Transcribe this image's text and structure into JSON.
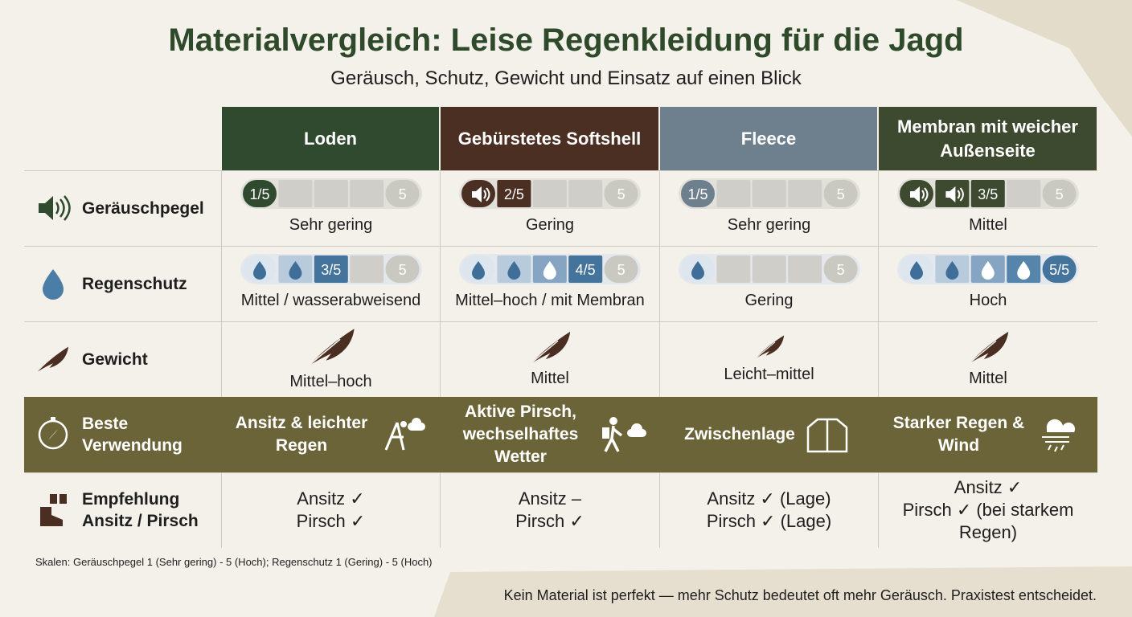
{
  "header": {
    "title": "Materialvergleich: Leise Regenkleidung für die Jagd",
    "subtitle": "Geräusch, Schutz, Gewicht und Einsatz auf einen Blick"
  },
  "table": {
    "columns": [
      {
        "name": "Loden",
        "color": "#2f4a2e"
      },
      {
        "name": "Gebürstetes Softshell",
        "color": "#4b2f23"
      },
      {
        "name": "Fleece",
        "color": "#6e808d"
      },
      {
        "name": "Membran mit weicher Außenseite",
        "color": "#3e4a30"
      }
    ],
    "rows": [
      {
        "label": "Geräuschpegel",
        "kind": "noise",
        "cells": [
          {
            "level": 1,
            "max": 5,
            "label": "1/5",
            "text": "Sehr gering"
          },
          {
            "level": 2,
            "max": 5,
            "label": "2/5",
            "text": "Gering"
          },
          {
            "level": 1,
            "max": 5,
            "label": "1/5",
            "text": "Sehr gering"
          },
          {
            "level": 3,
            "max": 5,
            "label": "3/5",
            "text": "Mittel"
          }
        ]
      },
      {
        "label": "Regenschutz",
        "kind": "rain",
        "cells": [
          {
            "level": 3,
            "max": 5,
            "label": "3/5",
            "text": "Mittel / wasserabweisend"
          },
          {
            "level": 4,
            "max": 5,
            "label": "4/5",
            "text": "Mittel–hoch / mit Membran"
          },
          {
            "level": 1,
            "max": 5,
            "text": "Gering"
          },
          {
            "level": 5,
            "max": 5,
            "label": "5/5",
            "text": "Hoch"
          }
        ]
      },
      {
        "label": "Gewicht",
        "kind": "weight",
        "cells": [
          {
            "text": "Mittel–hoch"
          },
          {
            "text": "Mittel"
          },
          {
            "text": "Leicht–mittel"
          },
          {
            "text": "Mittel"
          }
        ]
      },
      {
        "label": "Beste Verwendung",
        "kind": "use",
        "background": "#6b6438",
        "cells": [
          {
            "text": "Ansitz & leichter Regen"
          },
          {
            "text": "Aktive Pirsch, wechselhaftes Wetter"
          },
          {
            "text": "Zwischenlage"
          },
          {
            "text": "Starker Regen & Wind"
          }
        ]
      },
      {
        "label": "Empfehlung Ansitz / Pirsch",
        "kind": "recommend",
        "cells": [
          {
            "lines": [
              "Ansitz ✓",
              "Pirsch ✓"
            ]
          },
          {
            "lines": [
              "Ansitz –",
              "Pirsch ✓"
            ]
          },
          {
            "lines": [
              "Ansitz ✓ (Lage)",
              "Pirsch ✓ (Lage)"
            ]
          },
          {
            "lines": [
              "Ansitz ✓",
              "Pirsch ✓ (bei starkem Regen)"
            ]
          }
        ]
      }
    ]
  },
  "footnote": "Skalen: Geräuschpegel 1 (Sehr gering) - 5 (Hoch); Regenschutz 1 (Gering) - 5 (Hoch)",
  "note": "Kein Material ist perfekt — mehr Schutz bedeutet oft mehr Geräusch. Praxistest entscheidet."
}
